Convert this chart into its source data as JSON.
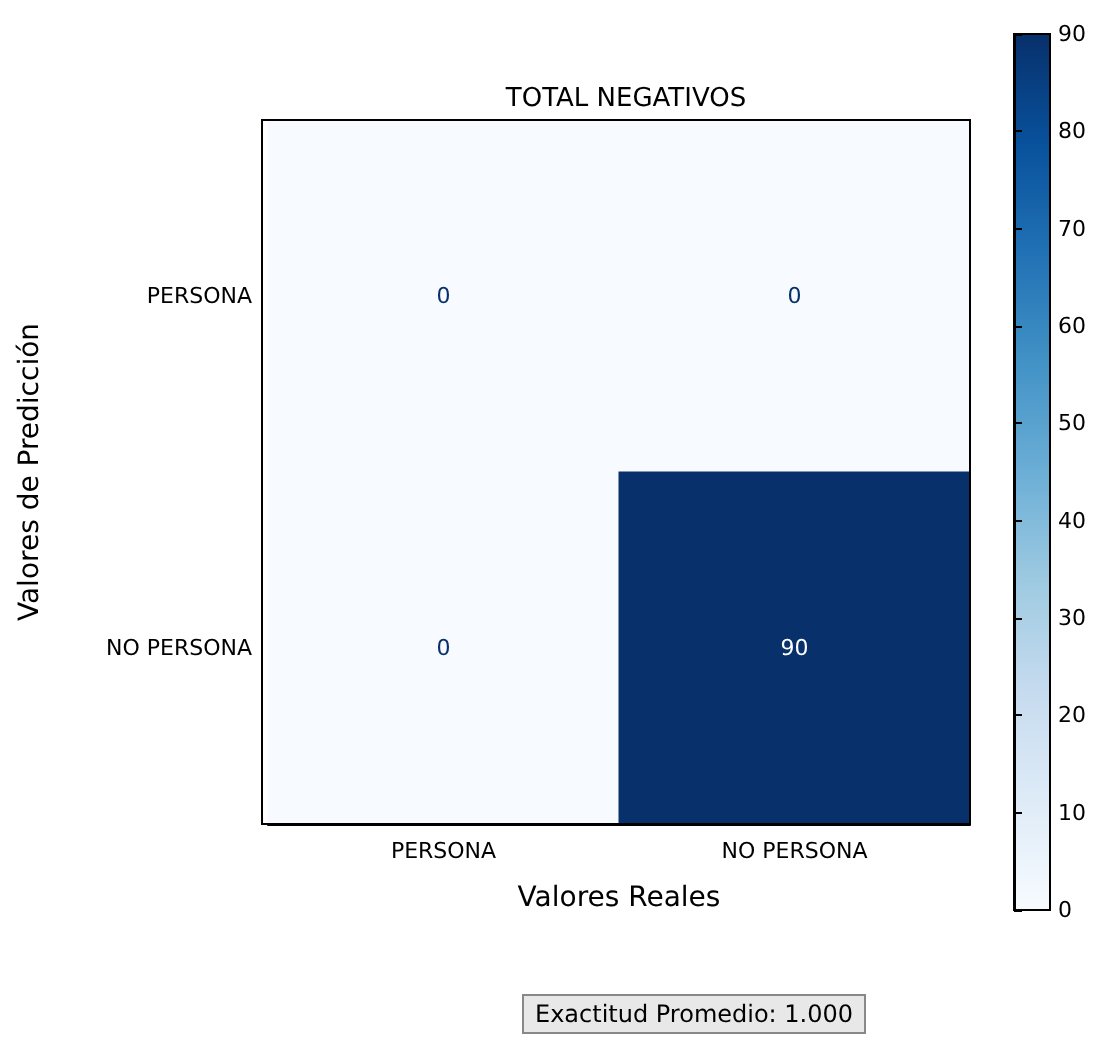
{
  "chart_data": {
    "type": "heatmap",
    "title": "TOTAL NEGATIVOS",
    "xlabel": "Valores Reales",
    "ylabel": "Valores de Predicción",
    "categories": [
      "PERSONA",
      "NO PERSONA"
    ],
    "y_categories": [
      "PERSONA",
      "NO PERSONA"
    ],
    "cells": [
      [
        0,
        0
      ],
      [
        0,
        90
      ]
    ],
    "data_labels": true,
    "clim": [
      0,
      90
    ],
    "cticks": [
      0,
      10,
      20,
      30,
      40,
      50,
      60,
      70,
      80,
      90
    ],
    "annotations": [
      "Exactitud Promedio: 1.000"
    ]
  }
}
